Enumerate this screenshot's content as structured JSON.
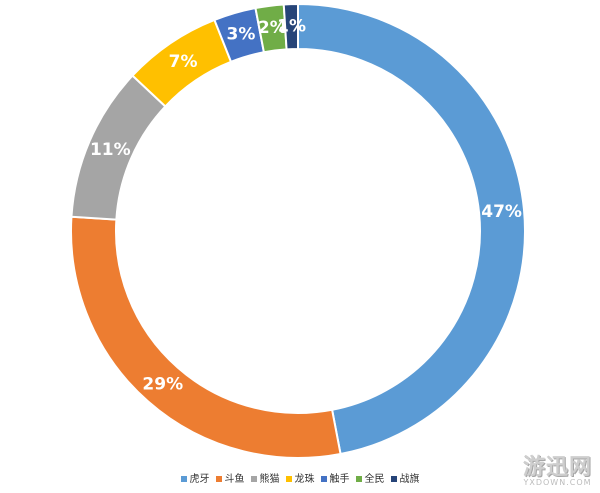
{
  "chart_data": {
    "type": "pie",
    "variant": "donut",
    "title": "",
    "series": [
      {
        "categories": [
          "虎牙",
          "斗鱼",
          "熊猫",
          "龙珠",
          "触手",
          "全民",
          "战旗"
        ],
        "values": [
          47,
          29,
          11,
          7,
          3,
          2,
          1
        ],
        "labels": [
          "47%",
          "29%",
          "11%",
          "7%",
          "3%",
          "2%",
          "1%"
        ]
      }
    ],
    "colors": [
      "#5b9bd5",
      "#ed7d31",
      "#a5a5a5",
      "#ffc000",
      "#4472c4",
      "#70ad47",
      "#264478"
    ],
    "legend_position": "bottom"
  },
  "watermark": {
    "main": "游迅网",
    "sub": "YXDOWN.COM"
  }
}
